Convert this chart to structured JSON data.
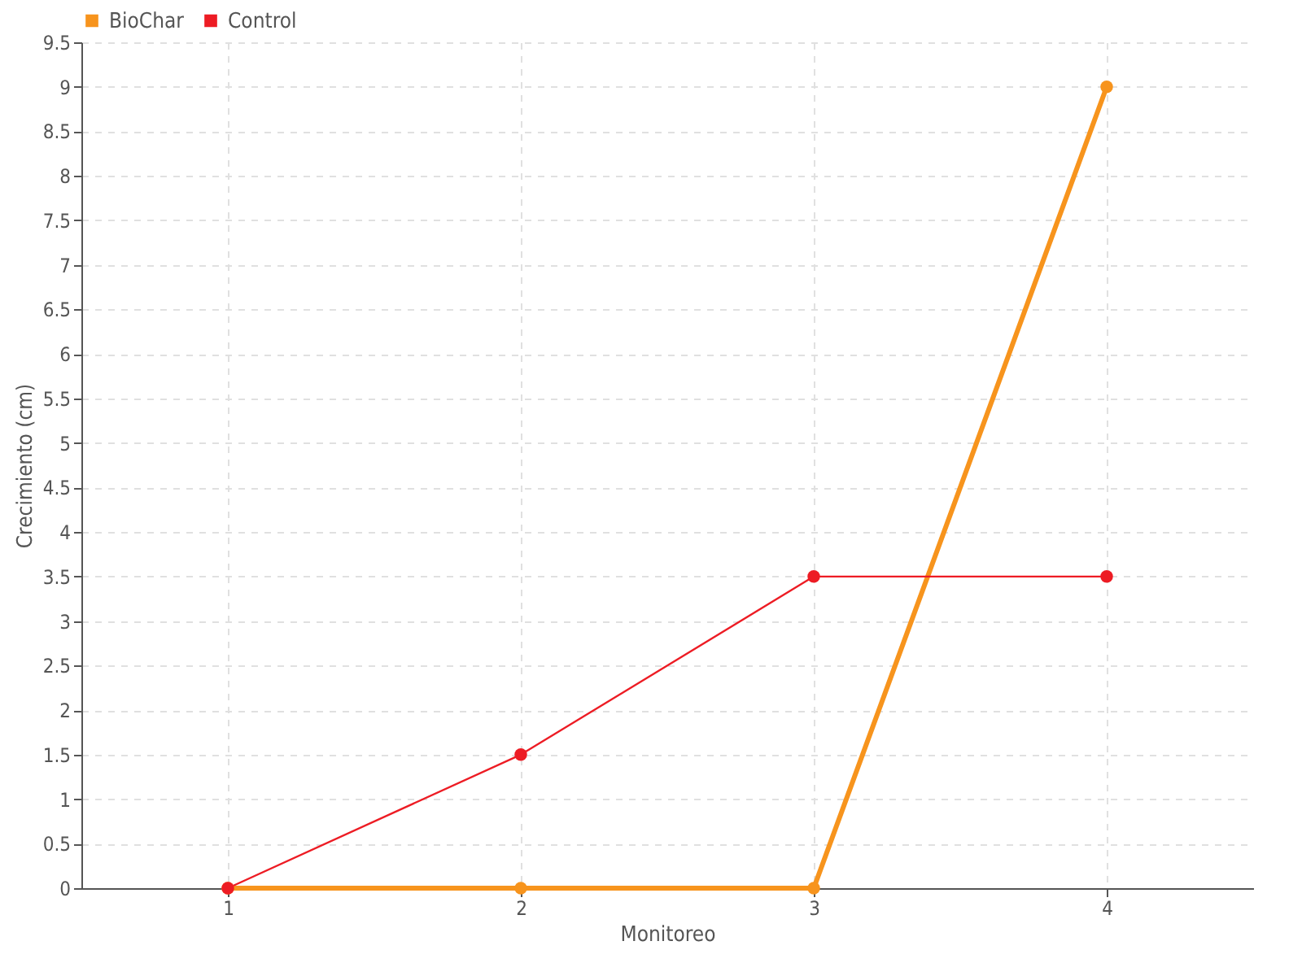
{
  "chart_data": {
    "type": "line",
    "xlabel": "Monitoreo",
    "ylabel": "Crecimiento (cm)",
    "x": [
      1,
      2,
      3,
      4
    ],
    "xlim": [
      0.5,
      4.5
    ],
    "xticks": [
      1,
      2,
      3,
      4
    ],
    "ylim": [
      0,
      9.5
    ],
    "yticks": [
      0,
      0.5,
      1,
      1.5,
      2,
      2.5,
      3,
      3.5,
      4,
      4.5,
      5,
      5.5,
      6,
      6.5,
      7,
      7.5,
      8,
      8.5,
      9,
      9.5
    ],
    "series": [
      {
        "name": "BioChar",
        "color": "#f7941d",
        "values": [
          0,
          0,
          0,
          9
        ]
      },
      {
        "name": "Control",
        "color": "#ed1c24",
        "values": [
          0,
          1.5,
          3.5,
          3.5
        ]
      }
    ],
    "grid": true,
    "legend": "top left",
    "marker": "circle",
    "line_style": "solid"
  }
}
